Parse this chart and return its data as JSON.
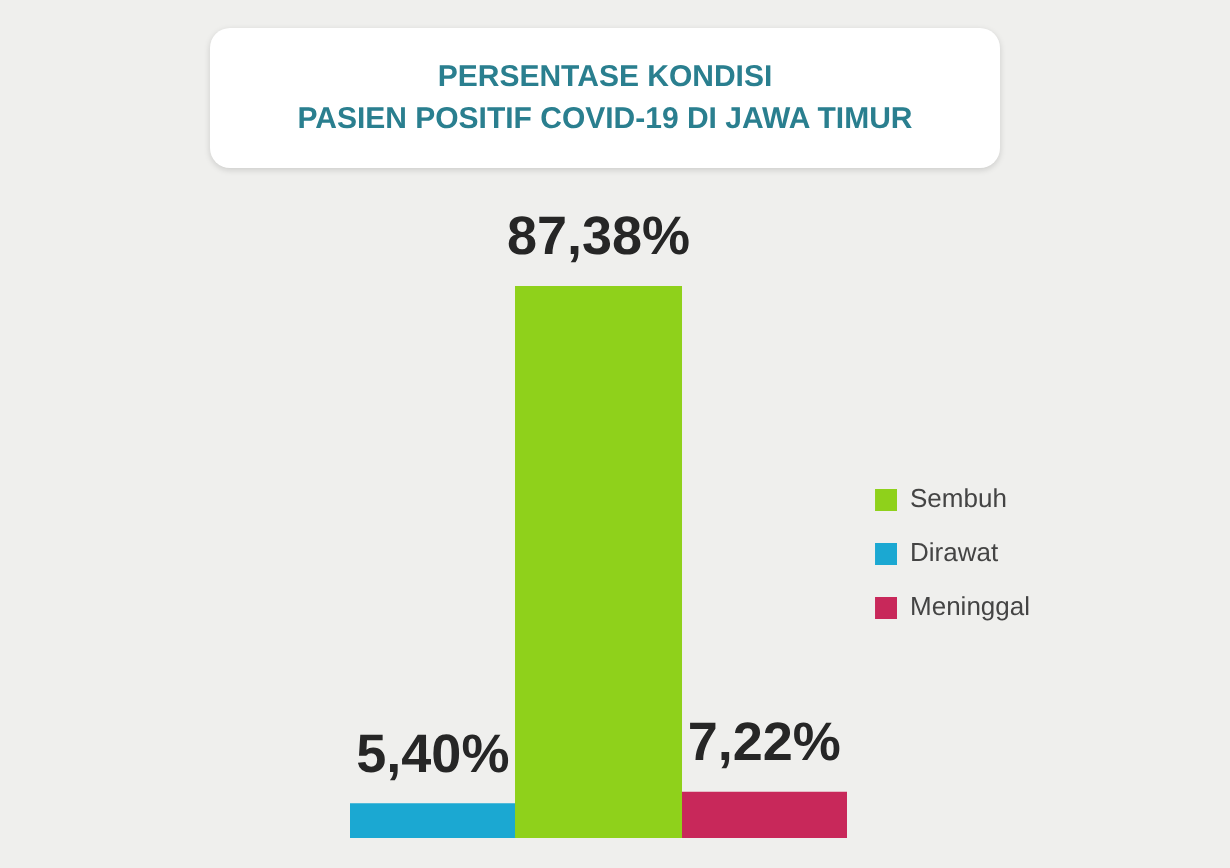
{
  "chart_data": {
    "type": "bar",
    "title": "PERSENTASE KONDISI\nPASIEN POSITIF COVID-19 DI JAWA TIMUR",
    "categories": [
      null,
      null,
      null
    ],
    "stacked": true,
    "legend": "right",
    "series": [
      {
        "name": "Sembuh",
        "color": "#8fd11b",
        "values": [
          null,
          87.38,
          null
        ],
        "value_labels": [
          null,
          "87,38%",
          null
        ]
      },
      {
        "name": "Dirawat",
        "color": "#1ba8d2",
        "values": [
          5.4,
          null,
          null
        ],
        "value_labels": [
          "5,40%",
          null,
          null
        ]
      },
      {
        "name": "Meninggal",
        "color": "#c8285a",
        "values": [
          null,
          null,
          7.22
        ],
        "value_labels": [
          null,
          null,
          "7,22%"
        ]
      }
    ]
  }
}
